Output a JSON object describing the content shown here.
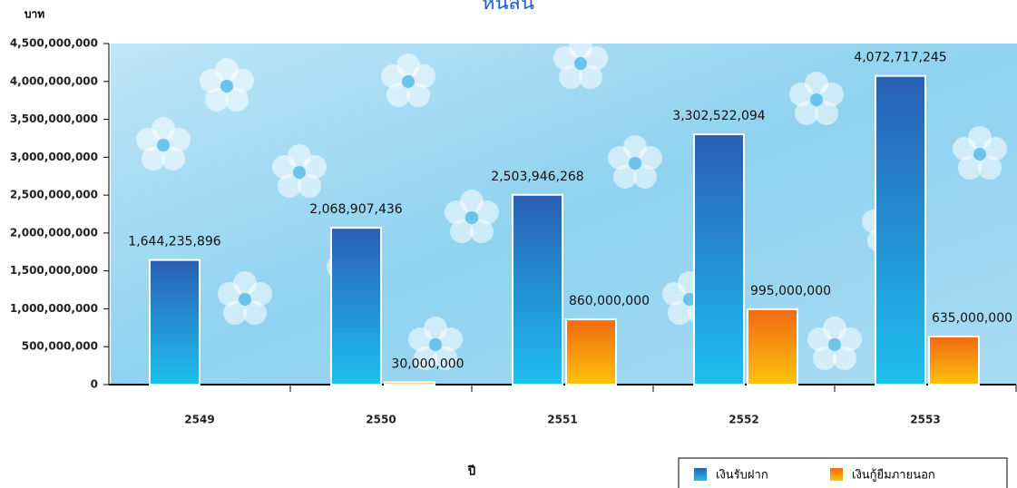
{
  "chart_data": {
    "type": "bar",
    "title": "หนี้สิน",
    "y_label": "บาท",
    "x_label": "ปี",
    "categories": [
      "2549",
      "2550",
      "2551",
      "2552",
      "2553"
    ],
    "series": [
      {
        "name": "เงินรับฝาก",
        "color": "#1ec0ee",
        "values": [
          1644235896,
          2068907436,
          2503946268,
          3302522094,
          4072717245
        ],
        "value_labels": [
          "1,644,235,896",
          "2,068,907,436",
          "2,503,946,268",
          "3,302,522,094",
          "4,072,717,245"
        ]
      },
      {
        "name": "เงินกู้ยืมภายนอก",
        "color": "#ffc20e",
        "values": [
          null,
          30000000,
          860000000,
          995000000,
          635000000
        ],
        "value_labels": [
          null,
          "30,000,000",
          "860,000,000",
          "995,000,000",
          "635,000,000"
        ]
      }
    ],
    "ylim": [
      0,
      4500000000
    ],
    "yticks": [
      0,
      {
        "value": 500000000,
        "label": "500,000,000"
      },
      {
        "value": 1000000000,
        "label": "1,000,000,000"
      },
      {
        "value": 1500000000,
        "label": "1,500,000,000"
      },
      {
        "value": 2000000000,
        "label": "2,000,000,000"
      },
      {
        "value": 2500000000,
        "label": "2,500,000,000"
      },
      {
        "value": 3000000000,
        "label": "3,000,000,000"
      },
      {
        "value": 3500000000,
        "label": "3,500,000,000"
      },
      {
        "value": 4000000000,
        "label": "4,000,000,000"
      },
      {
        "value": 4500000000,
        "label": "4,500,000,000"
      }
    ],
    "legend": "lower right"
  }
}
